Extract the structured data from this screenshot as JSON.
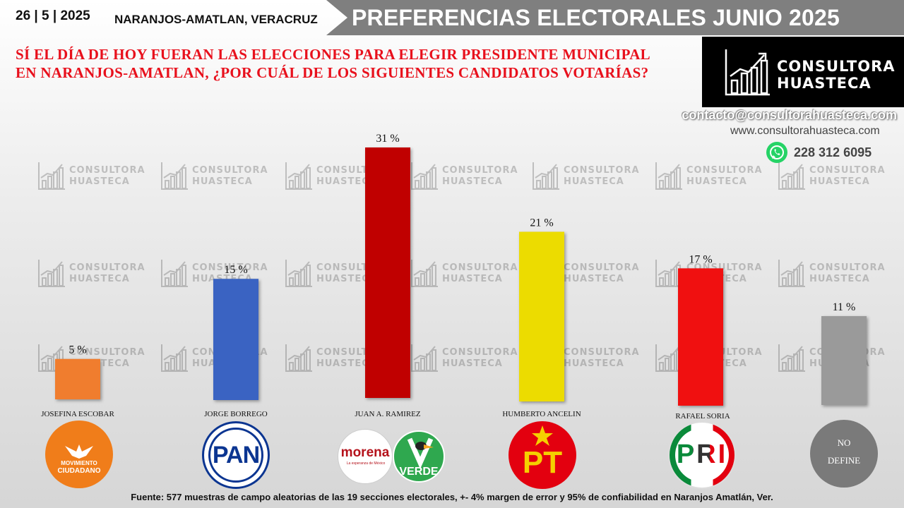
{
  "header": {
    "date": "26 | 5 | 2025",
    "location": "NARANJOS-AMATLAN, VERACRUZ",
    "title": "PREFERENCIAS ELECTORALES JUNIO 2025"
  },
  "question": {
    "line1": "SÍ EL DÍA DE HOY FUERAN LAS ELECCIONES PARA ELEGIR PRESIDENTE MUNICIPAL",
    "line2": "EN NARANJOS-AMATLAN,  ¿POR CUÁL DE LOS SIGUIENTES CANDIDATOS VOTARÍAS?"
  },
  "brand": {
    "line1": "CONSULTORA",
    "line2": "HUASTECA",
    "email": "contacto@consultorahuasteca.com",
    "website": "www.consultorahuasteca.com",
    "phone": "228 312 6095",
    "icons": [
      "chart-logo-icon",
      "whatsapp-icon"
    ]
  },
  "chart_data": {
    "type": "bar",
    "categories": [
      "JOSEFINA ESCOBAR",
      "JORGE BORREGO",
      "JUAN A. RAMIREZ",
      "HUMBERTO ANCELIN",
      "RAFAEL SORIA",
      "NO DEFINE"
    ],
    "values": [
      5,
      15,
      31,
      21,
      17,
      11
    ],
    "data_labels": [
      "5 %",
      "15 %",
      "31 %",
      "21 %",
      "17 %",
      "11 %"
    ],
    "colors": [
      "#f07d2e",
      "#3a63c2",
      "#c00000",
      "#ecdc00",
      "#f01010",
      "#9a9a9a"
    ],
    "ylim": [
      0,
      31
    ],
    "grid": false,
    "legend": "none"
  },
  "party_logos": [
    {
      "name": "MOVIMIENTO CIUDADANO",
      "line1": "MOVIMIENTO",
      "line2": "CIUDADANO",
      "color": "#f07d1a"
    },
    {
      "name": "PAN",
      "text": "PAN",
      "color": "#0b3591"
    },
    {
      "name": "morena",
      "text": "morena",
      "subtext": "La esperanza de México",
      "color": "#b5121b"
    },
    {
      "name": "VERDE",
      "text": "VERDE",
      "color": "#2fa84f"
    },
    {
      "name": "PT",
      "text": "PT",
      "color": "#e3000f"
    },
    {
      "name": "PRI",
      "text": "PRI",
      "colors": [
        "#0a8a3a",
        "#ffffff",
        "#e3000f"
      ]
    },
    {
      "name": "NO DEFINE",
      "line1": "NO",
      "line2": "DEFINE",
      "color": "#7a7a7a"
    }
  ],
  "footer": "Fuente:  577 muestras de campo aleatorias de las  19 secciones electorales, +- 4% margen de error y 95% de confiabilidad en Naranjos Amatlán, Ver."
}
